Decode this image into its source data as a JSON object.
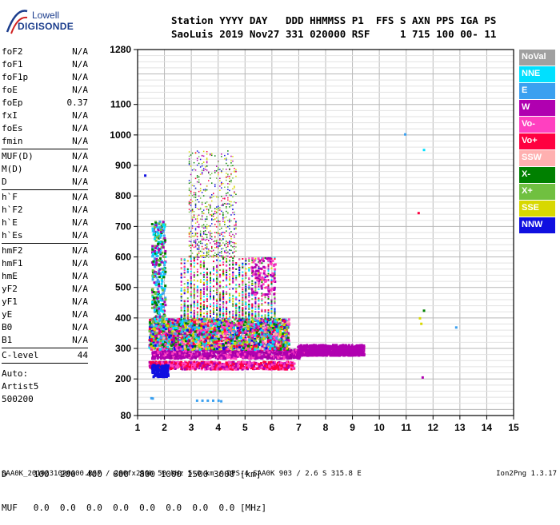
{
  "logo": {
    "line1": "Lowell",
    "line2": "DIGISONDE"
  },
  "header": {
    "line1": "Station YYYY DAY   DDD HHMMSS P1  FFS S AXN PPS IGA PS",
    "line2": "SaoLuis 2019 Nov27 331 020000 RSF     1 715 100 00- 11"
  },
  "params": [
    {
      "name": "foF2",
      "value": "N/A"
    },
    {
      "name": "foF1",
      "value": "N/A"
    },
    {
      "name": "foF1p",
      "value": "N/A"
    },
    {
      "name": "foE",
      "value": "N/A"
    },
    {
      "name": "foEp",
      "value": "0.37"
    },
    {
      "name": "fxI",
      "value": "N/A"
    },
    {
      "name": "foEs",
      "value": "N/A"
    },
    {
      "name": "fmin",
      "value": "N/A"
    },
    {
      "sep": true
    },
    {
      "name": "MUF(D)",
      "value": "N/A"
    },
    {
      "name": "M(D)",
      "value": "N/A"
    },
    {
      "name": "D",
      "value": "N/A"
    },
    {
      "sep": true
    },
    {
      "name": "h`F",
      "value": "N/A"
    },
    {
      "name": "h`F2",
      "value": "N/A"
    },
    {
      "name": "h`E",
      "value": "N/A"
    },
    {
      "name": "h`Es",
      "value": "N/A"
    },
    {
      "sep": true
    },
    {
      "name": "hmF2",
      "value": "N/A"
    },
    {
      "name": "hmF1",
      "value": "N/A"
    },
    {
      "name": "hmE",
      "value": "N/A"
    },
    {
      "name": "yF2",
      "value": "N/A"
    },
    {
      "name": "yF1",
      "value": "N/A"
    },
    {
      "name": "yE",
      "value": "N/A"
    },
    {
      "name": "B0",
      "value": "N/A"
    },
    {
      "name": "B1",
      "value": "N/A"
    },
    {
      "sep": true
    },
    {
      "name": "C-level",
      "value": "44"
    },
    {
      "sep": true
    }
  ],
  "auto": {
    "label": "Auto:",
    "artist": "Artist5",
    "code": "500200"
  },
  "legend": [
    {
      "label": "NoVal",
      "color": "#a0a0a0"
    },
    {
      "label": "NNE",
      "color": "#00e0ff"
    },
    {
      "label": "E",
      "color": "#3aa0f0"
    },
    {
      "label": "W",
      "color": "#b000b0"
    },
    {
      "label": "Vo-",
      "color": "#ff40c0"
    },
    {
      "label": "Vo+",
      "color": "#ff0040"
    },
    {
      "label": "SSW",
      "color": "#ffb0b0"
    },
    {
      "label": "X-",
      "color": "#008000"
    },
    {
      "label": "X+",
      "color": "#70c040"
    },
    {
      "label": "SSE",
      "color": "#d8d800"
    },
    {
      "label": "NNW",
      "color": "#1010e0"
    }
  ],
  "muf_table": {
    "d_line": "D     100  200  400  600  800 1000 1500 3000 [km]",
    "muf_line": "MUF   0.0  0.0  0.0  0.0  0.0  0.0  0.0  0.0 [MHz]"
  },
  "footer": {
    "left": "SAA0K_2019331020000.RSF / 280fx256h 50 kHz 5.0 km / DPS-4 SAA0K 903 / 2.6 S 315.8 E",
    "right": "Ion2Png 1.3.17"
  },
  "chart_data": {
    "type": "scatter",
    "title": "",
    "xlabel": "",
    "ylabel": "",
    "xlim": [
      1,
      15
    ],
    "ylim": [
      80,
      1280
    ],
    "xticks": [
      1,
      2,
      3,
      4,
      5,
      6,
      7,
      8,
      9,
      10,
      11,
      12,
      13,
      14,
      15
    ],
    "yticks": [
      80,
      200,
      300,
      400,
      500,
      600,
      700,
      800,
      900,
      1000,
      1100,
      1280
    ],
    "grid": true,
    "legend_placement": "right",
    "clusters": [
      {
        "fmin": 1.5,
        "fmax": 9.4,
        "hmin": 270,
        "hmax": 300,
        "n": 1400,
        "colors": [
          "#b000b0",
          "#b000b0",
          "#b000b0",
          "#a000a0",
          "#ff40c0"
        ]
      },
      {
        "fmin": 1.4,
        "fmax": 6.8,
        "hmin": 235,
        "hmax": 260,
        "n": 700,
        "colors": [
          "#ff0040",
          "#b000b0",
          "#ff40c0"
        ]
      },
      {
        "fmin": 1.4,
        "fmax": 6.6,
        "hmin": 300,
        "hmax": 400,
        "n": 2400,
        "colors": [
          "#d8d800",
          "#70c040",
          "#ff0040",
          "#b000b0",
          "#1010e0",
          "#3aa0f0",
          "#008000",
          "#00e0ff",
          "#ff40c0",
          "#ffb0b0"
        ]
      },
      {
        "fmin": 1.5,
        "fmax": 2.1,
        "hmin": 210,
        "hmax": 250,
        "n": 160,
        "colors": [
          "#1010e0"
        ]
      },
      {
        "fmin": 2.6,
        "fmax": 6.2,
        "hmin": 400,
        "hmax": 600,
        "n": 1200,
        "colors": [
          "#b000b0",
          "#ff0040",
          "#d8d800",
          "#70c040",
          "#008000",
          "#1010e0",
          "#ff40c0",
          "#00e0ff"
        ]
      },
      {
        "fmin": 1.5,
        "fmax": 2.0,
        "hmin": 400,
        "hmax": 720,
        "n": 300,
        "colors": [
          "#00e0ff",
          "#3aa0f0",
          "#008000",
          "#70c040",
          "#b000b0"
        ]
      },
      {
        "fmin": 2.9,
        "fmax": 4.7,
        "hmin": 600,
        "hmax": 950,
        "n": 700,
        "colors": [
          "#d8d800",
          "#ff0040",
          "#b000b0",
          "#1010e0",
          "#70c040",
          "#008000"
        ]
      },
      {
        "fmin": 5.2,
        "fmax": 6.1,
        "hmin": 480,
        "hmax": 600,
        "n": 90,
        "colors": [
          "#b000b0",
          "#ff40c0"
        ]
      },
      {
        "fmin": 6.9,
        "fmax": 9.4,
        "hmin": 280,
        "hmax": 315,
        "n": 500,
        "colors": [
          "#b000b0"
        ]
      }
    ],
    "points": [
      {
        "x": 1.27,
        "y": 868,
        "c": "#1010e0"
      },
      {
        "x": 10.95,
        "y": 1003,
        "c": "#3aa0f0"
      },
      {
        "x": 11.45,
        "y": 745,
        "c": "#ff0040"
      },
      {
        "x": 11.65,
        "y": 952,
        "c": "#00e0ff"
      },
      {
        "x": 11.65,
        "y": 425,
        "c": "#008000"
      },
      {
        "x": 11.5,
        "y": 400,
        "c": "#d8d800"
      },
      {
        "x": 11.55,
        "y": 382,
        "c": "#d8d800"
      },
      {
        "x": 11.6,
        "y": 206,
        "c": "#b000b0"
      },
      {
        "x": 12.85,
        "y": 370,
        "c": "#3aa0f0"
      },
      {
        "x": 1.5,
        "y": 138,
        "c": "#3aa0f0"
      },
      {
        "x": 1.55,
        "y": 137,
        "c": "#3aa0f0"
      },
      {
        "x": 3.2,
        "y": 130,
        "c": "#3aa0f0"
      },
      {
        "x": 3.4,
        "y": 130,
        "c": "#3aa0f0"
      },
      {
        "x": 3.6,
        "y": 130,
        "c": "#3aa0f0"
      },
      {
        "x": 3.8,
        "y": 130,
        "c": "#3aa0f0"
      },
      {
        "x": 4.0,
        "y": 130,
        "c": "#3aa0f0"
      },
      {
        "x": 4.1,
        "y": 128,
        "c": "#3aa0f0"
      }
    ]
  }
}
